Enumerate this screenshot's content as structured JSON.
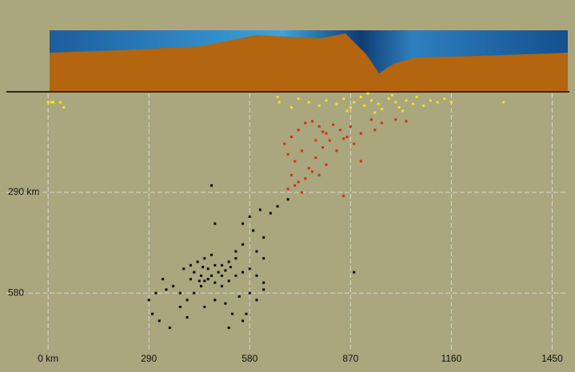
{
  "chart_data": {
    "type": "scatter",
    "xlim": [
      -120,
      1495
    ],
    "ylim": [
      750,
      0
    ],
    "xticks": [
      {
        "value": 0,
        "label": "0 km"
      },
      290,
      580,
      870,
      1160,
      1450
    ],
    "yticks": [
      {
        "value": 290,
        "label": "290 km"
      },
      580
    ],
    "grid": true,
    "series": [
      {
        "color": "#f5e21c",
        "x": [
          0,
          15,
          35,
          45,
          10,
          660,
          665,
          700,
          720,
          750,
          780,
          800,
          830,
          850,
          870,
          880,
          900,
          910,
          930,
          950,
          960,
          980,
          1000,
          1010,
          1030,
          1050,
          1060,
          1080,
          1100,
          1120,
          1140,
          1160,
          940,
          1020,
          990,
          920,
          860,
          1310
        ],
        "values": [
          30,
          30,
          30,
          45,
          30,
          15,
          30,
          45,
          20,
          30,
          40,
          25,
          35,
          20,
          45,
          30,
          15,
          40,
          25,
          35,
          50,
          20,
          30,
          45,
          25,
          35,
          15,
          40,
          25,
          30,
          20,
          30,
          60,
          55,
          10,
          5,
          55,
          30
        ]
      },
      {
        "color": "#e3261a",
        "x": [
          680,
          700,
          720,
          740,
          760,
          780,
          800,
          820,
          840,
          860,
          880,
          900,
          930,
          960,
          1000,
          1030,
          690,
          710,
          730,
          750,
          770,
          790,
          810,
          830,
          850,
          700,
          720,
          740,
          760,
          690,
          710,
          730,
          780,
          800,
          850,
          900,
          870,
          940,
          770,
          790
        ],
        "values": [
          150,
          130,
          110,
          90,
          85,
          100,
          120,
          95,
          110,
          130,
          150,
          120,
          80,
          90,
          80,
          85,
          180,
          200,
          170,
          220,
          190,
          160,
          140,
          170,
          135,
          240,
          260,
          250,
          230,
          280,
          270,
          290,
          240,
          210,
          300,
          200,
          100,
          110,
          140,
          115
        ]
      },
      {
        "color": "#0a0a0a",
        "x": [
          690,
          660,
          640,
          610,
          580,
          560,
          590,
          620,
          560,
          540,
          480,
          470,
          450,
          430,
          410,
          390,
          420,
          440,
          460,
          480,
          500,
          520,
          540,
          560,
          580,
          600,
          620,
          500,
          520,
          480,
          460,
          440,
          420,
          400,
          380,
          360,
          340,
          310,
          290,
          300,
          320,
          350,
          400,
          450,
          480,
          510,
          530,
          560,
          550,
          580,
          600,
          620,
          490,
          470,
          450,
          500,
          510,
          525,
          445,
          435,
          410,
          380,
          330,
          620,
          600,
          540,
          470,
          880,
          570,
          520
        ],
        "values": [
          310,
          330,
          350,
          340,
          360,
          380,
          400,
          420,
          440,
          460,
          380,
          470,
          480,
          490,
          500,
          510,
          520,
          530,
          540,
          550,
          560,
          545,
          530,
          520,
          510,
          530,
          550,
          500,
          490,
          500,
          510,
          560,
          580,
          600,
          620,
          560,
          570,
          580,
          600,
          640,
          660,
          680,
          650,
          620,
          600,
          610,
          640,
          660,
          590,
          580,
          600,
          570,
          520,
          530,
          545,
          530,
          515,
          505,
          505,
          545,
          540,
          580,
          540,
          480,
          460,
          480,
          270,
          520,
          640,
          680
        ]
      }
    ]
  }
}
